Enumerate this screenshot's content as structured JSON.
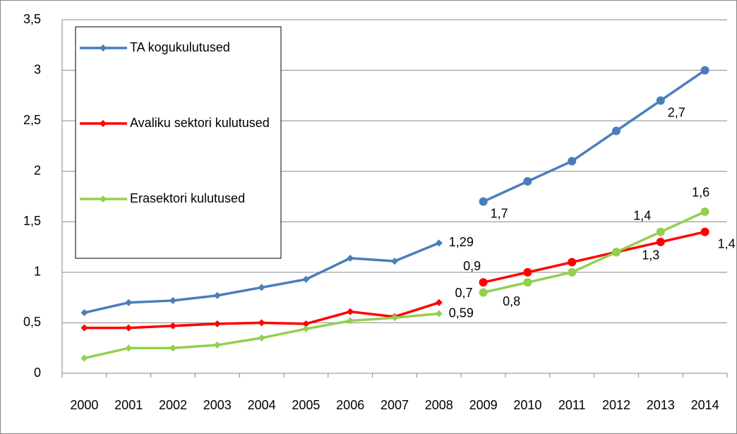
{
  "chart_data": {
    "type": "line",
    "categories": [
      "2000",
      "2001",
      "2002",
      "2003",
      "2004",
      "2005",
      "2006",
      "2007",
      "2008",
      "2009",
      "2010",
      "2011",
      "2012",
      "2013",
      "2014"
    ],
    "ylim": [
      0,
      3.5
    ],
    "yticks": [
      0,
      {
        "value": 0.5,
        "label": "0,5"
      },
      1,
      {
        "value": 1.5,
        "label": "1,5"
      },
      2,
      {
        "value": 2.5,
        "label": "2,5"
      },
      3,
      {
        "value": 3.5,
        "label": "3,5"
      }
    ],
    "grid": true,
    "legend": "top-left",
    "series": [
      {
        "name": "TA kogukulutused",
        "color": "#4a7ebb",
        "marker": "diamond",
        "values": [
          0.6,
          0.7,
          0.72,
          0.77,
          0.85,
          0.93,
          1.14,
          1.11,
          1.29,
          null,
          null,
          null,
          null,
          null,
          null
        ],
        "value_labels": [
          null,
          null,
          null,
          null,
          null,
          null,
          null,
          null,
          "1,29",
          null,
          null,
          null,
          null,
          null,
          null
        ]
      },
      {
        "name": "Avaliku sektori kulutused",
        "color": "#ff0000",
        "marker": "diamond",
        "values": [
          0.45,
          0.45,
          0.47,
          0.49,
          0.5,
          0.49,
          0.61,
          0.56,
          0.7,
          null,
          null,
          null,
          null,
          null,
          null
        ]
      },
      {
        "name": "Erasektori kulutused",
        "color": "#92d050",
        "marker": "diamond",
        "values": [
          0.15,
          0.25,
          0.25,
          0.28,
          0.35,
          0.44,
          0.52,
          0.55,
          0.59,
          null,
          null,
          null,
          null,
          null,
          null
        ],
        "value_labels": [
          null,
          null,
          null,
          null,
          null,
          null,
          null,
          null,
          "0,59",
          null,
          null,
          null,
          null,
          null,
          null
        ]
      },
      {
        "color": "#4a7ebb",
        "marker": "circle",
        "values": [
          null,
          null,
          null,
          null,
          null,
          null,
          null,
          null,
          null,
          1.7,
          1.9,
          2.1,
          2.4,
          2.7,
          3
        ],
        "value_labels": [
          null,
          null,
          null,
          null,
          null,
          null,
          null,
          null,
          null,
          "1,7",
          null,
          null,
          null,
          "2,7",
          null
        ]
      },
      {
        "color": "#ff0000",
        "marker": "circle",
        "values": [
          null,
          null,
          null,
          null,
          null,
          null,
          null,
          null,
          null,
          0.9,
          1.0,
          1.1,
          1.2,
          1.3,
          1.4
        ],
        "value_labels": [
          null,
          null,
          null,
          null,
          null,
          null,
          null,
          null,
          null,
          "0,9",
          null,
          null,
          null,
          "1,3",
          "1,4"
        ]
      },
      {
        "color": "#92d050",
        "marker": "circle",
        "values": [
          null,
          null,
          null,
          null,
          null,
          null,
          null,
          null,
          null,
          0.8,
          0.9,
          1.0,
          1.2,
          1.4,
          1.6
        ],
        "value_labels": [
          null,
          null,
          null,
          null,
          null,
          null,
          null,
          null,
          null,
          "0,8",
          null,
          null,
          null,
          "1,4",
          "1,6"
        ]
      }
    ],
    "annotations": [
      "0,7"
    ]
  }
}
